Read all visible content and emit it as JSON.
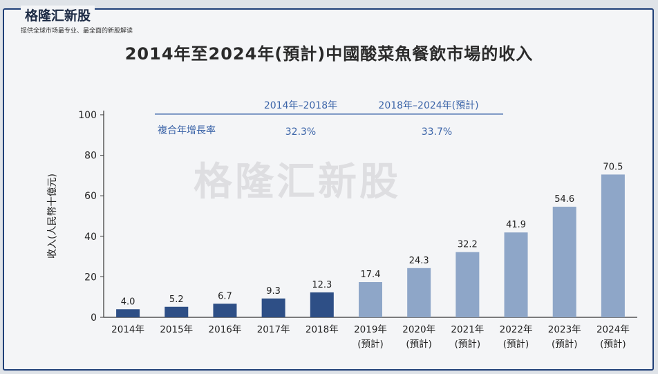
{
  "brand": {
    "name": "格隆汇新股",
    "tagline": "提供全球市场最专业、最全面的新股解读",
    "watermark": "格隆汇新股"
  },
  "colors": {
    "historical": "#2e4f86",
    "forecast": "#8ea6c8",
    "cagr_text": "#3b64a8",
    "axis": "#333333"
  },
  "chart_data": {
    "type": "bar",
    "title": "2014年至2024年(預計)中國酸菜魚餐飲市場的收入",
    "ylabel": "收入(人民幣十億元)",
    "ylim": [
      0,
      100
    ],
    "yticks": [
      0,
      20,
      40,
      60,
      80,
      100
    ],
    "categories": [
      [
        "2014年",
        ""
      ],
      [
        "2015年",
        ""
      ],
      [
        "2016年",
        ""
      ],
      [
        "2017年",
        ""
      ],
      [
        "2018年",
        ""
      ],
      [
        "2019年",
        "(預計)"
      ],
      [
        "2020年",
        "(預計)"
      ],
      [
        "2021年",
        "(預計)"
      ],
      [
        "2022年",
        "(預計)"
      ],
      [
        "2023年",
        "(預計)"
      ],
      [
        "2024年",
        "(預計)"
      ]
    ],
    "values": [
      4.0,
      5.2,
      6.7,
      9.3,
      12.3,
      17.4,
      24.3,
      32.2,
      41.9,
      54.6,
      70.5
    ],
    "value_labels": [
      "4.0",
      "5.2",
      "6.7",
      "9.3",
      "12.3",
      "17.4",
      "24.3",
      "32.2",
      "41.9",
      "54.6",
      "70.5"
    ],
    "forecast_from_index": 5,
    "cagr": {
      "row_label": "複合年增長率",
      "periods": [
        "2014年–2018年",
        "2018年–2024年(預計)"
      ],
      "values": [
        "32.3%",
        "33.7%"
      ]
    }
  }
}
